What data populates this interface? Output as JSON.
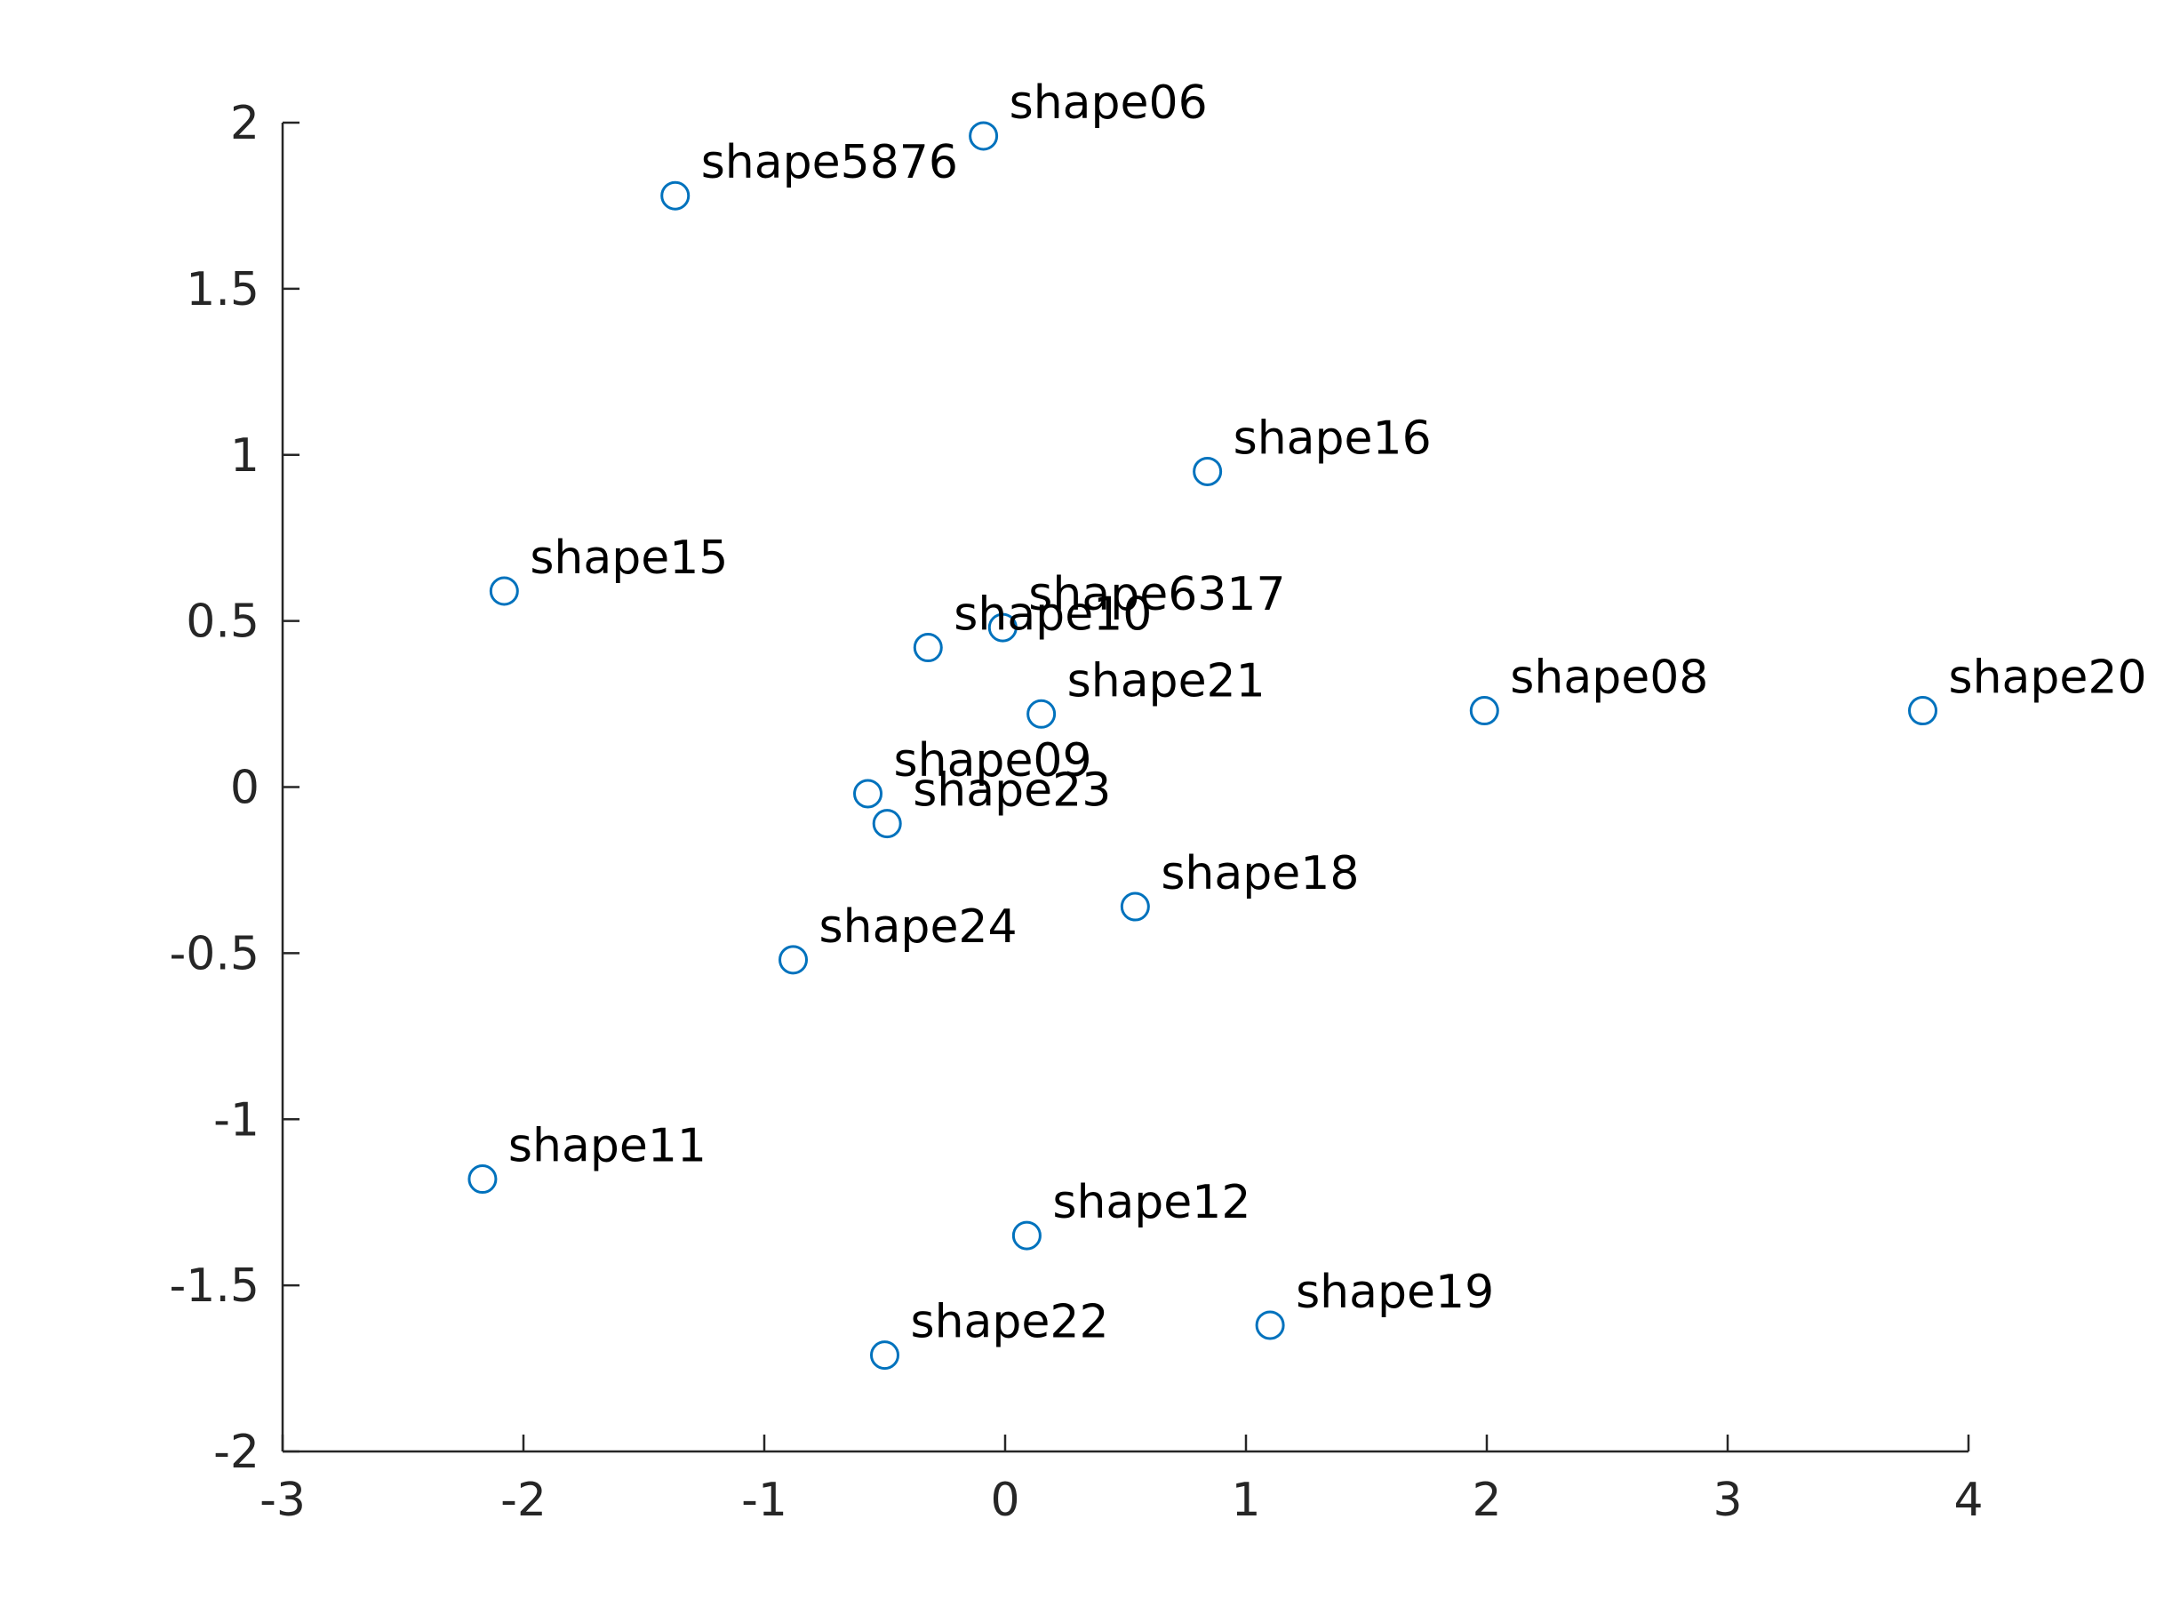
{
  "chart_data": {
    "type": "scatter",
    "title": "",
    "xlabel": "",
    "ylabel": "",
    "xlim": [
      -3,
      4
    ],
    "ylim": [
      -2,
      2
    ],
    "xticks": [
      -3,
      -2,
      -1,
      0,
      1,
      2,
      3,
      4
    ],
    "xtick_labels": [
      "-3",
      "-2",
      "-1",
      "0",
      "1",
      "2",
      "3",
      "4"
    ],
    "yticks": [
      2,
      1.5,
      1,
      0.5,
      0,
      -0.5,
      -1,
      -1.5,
      -2
    ],
    "ytick_labels": [
      "2",
      "1.5",
      "1",
      "0.5",
      "0",
      "-0.5",
      "-1",
      "-1.5",
      "-2"
    ],
    "grid": false,
    "marker": "open-circle",
    "marker_color": "#0072BD",
    "points": [
      {
        "label": "shape06",
        "x": -0.09,
        "y": 1.96
      },
      {
        "label": "shape5876",
        "x": -1.37,
        "y": 1.78
      },
      {
        "label": "shape16",
        "x": 0.84,
        "y": 0.95
      },
      {
        "label": "shape15",
        "x": -2.08,
        "y": 0.59
      },
      {
        "label": "shape6317",
        "x": -0.01,
        "y": 0.48
      },
      {
        "label": "shape10",
        "x": -0.32,
        "y": 0.42
      },
      {
        "label": "shape21",
        "x": 0.15,
        "y": 0.22
      },
      {
        "label": "shape08",
        "x": 1.99,
        "y": 0.23
      },
      {
        "label": "shape20",
        "x": 3.81,
        "y": 0.23
      },
      {
        "label": "shape09",
        "x": -0.57,
        "y": -0.02
      },
      {
        "label": "shape23",
        "x": -0.49,
        "y": -0.11
      },
      {
        "label": "shape18",
        "x": 0.54,
        "y": -0.36
      },
      {
        "label": "shape24",
        "x": -0.88,
        "y": -0.52
      },
      {
        "label": "shape11",
        "x": -2.17,
        "y": -1.18
      },
      {
        "label": "shape12",
        "x": 0.09,
        "y": -1.35
      },
      {
        "label": "shape19",
        "x": 1.1,
        "y": -1.62
      },
      {
        "label": "shape22",
        "x": -0.5,
        "y": -1.71
      }
    ]
  }
}
